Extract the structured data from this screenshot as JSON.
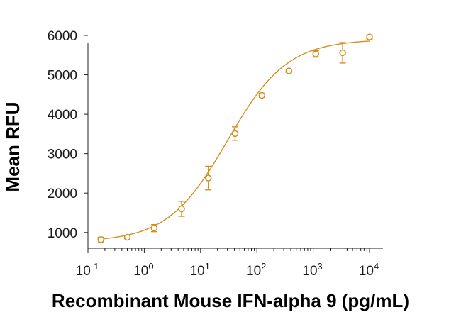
{
  "chart_data": {
    "type": "scatter",
    "title": "",
    "xlabel": "Recombinant Mouse IFN-alpha 9 (pg/mL)",
    "ylabel": "Mean RFU",
    "x_scale": "log",
    "xlim": [
      0.1,
      10000
    ],
    "ylim": [
      600,
      6000
    ],
    "x_ticks": [
      {
        "base": "10",
        "exp": "-1",
        "value": 0.1
      },
      {
        "base": "10",
        "exp": "0",
        "value": 1
      },
      {
        "base": "10",
        "exp": "1",
        "value": 10
      },
      {
        "base": "10",
        "exp": "2",
        "value": 100
      },
      {
        "base": "10",
        "exp": "3",
        "value": 1000
      },
      {
        "base": "10",
        "exp": "4",
        "value": 10000
      }
    ],
    "y_ticks": [
      1000,
      2000,
      3000,
      4000,
      5000,
      6000
    ],
    "grid": false,
    "legend": "none",
    "color": "#d4901c",
    "series": [
      {
        "points": [
          {
            "x": 0.17,
            "y": 820,
            "err": 60
          },
          {
            "x": 0.5,
            "y": 880,
            "err": 40
          },
          {
            "x": 1.5,
            "y": 1110,
            "err": 90
          },
          {
            "x": 4.6,
            "y": 1600,
            "err": 190
          },
          {
            "x": 13.7,
            "y": 2380,
            "err": 300
          },
          {
            "x": 41,
            "y": 3510,
            "err": 170
          },
          {
            "x": 123,
            "y": 4480,
            "err": 50
          },
          {
            "x": 370,
            "y": 5100,
            "err": 40
          },
          {
            "x": 1111,
            "y": 5530,
            "err": 80
          },
          {
            "x": 3333,
            "y": 5560,
            "err": 260
          },
          {
            "x": 10000,
            "y": 5960,
            "err": 50
          }
        ],
        "fit": {
          "model": "4PL",
          "bottom": 760,
          "top": 5900,
          "ec50": 30,
          "hill": 0.82
        }
      }
    ]
  }
}
